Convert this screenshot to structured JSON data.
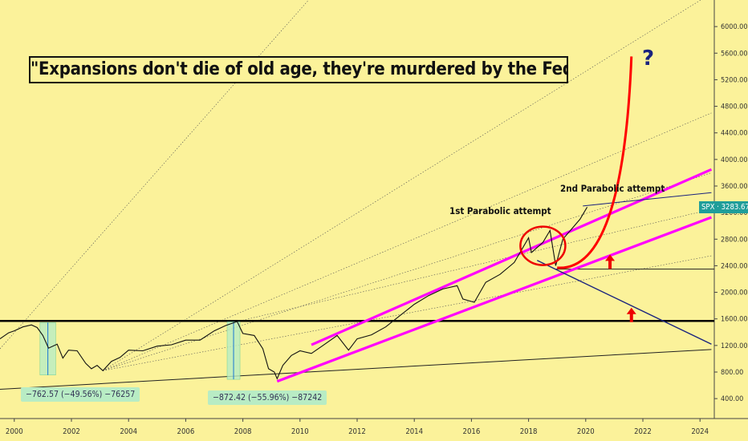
{
  "chart_data": {
    "type": "line",
    "symbol": "SPX",
    "last_price": "3283.67",
    "title": "\"Expansions don't die of old age, they're murdered by the Fed\"",
    "x_ticks": [
      "2000",
      "2002",
      "2004",
      "2006",
      "2008",
      "2010",
      "2012",
      "2014",
      "2016",
      "2018",
      "2020",
      "2022",
      "2024"
    ],
    "y_ticks": [
      "400.00",
      "800.00",
      "1200.00",
      "1600.00",
      "2000.00",
      "2400.00",
      "2800.00",
      "3200.00",
      "3600.00",
      "4000.00",
      "4400.00",
      "4800.00",
      "5200.00",
      "5600.00",
      "6000.00"
    ],
    "ylim": [
      100,
      6400
    ],
    "xlim": [
      1999.5,
      2024.5
    ],
    "series": [
      {
        "values": [
          [
            1999.5,
            1300
          ],
          [
            1999.8,
            1390
          ],
          [
            2000.0,
            1420
          ],
          [
            2000.3,
            1480
          ],
          [
            2000.6,
            1510
          ],
          [
            2000.8,
            1470
          ],
          [
            2001.0,
            1350
          ],
          [
            2001.2,
            1160
          ],
          [
            2001.5,
            1220
          ],
          [
            2001.7,
            1010
          ],
          [
            2001.9,
            1130
          ],
          [
            2002.2,
            1120
          ],
          [
            2002.5,
            930
          ],
          [
            2002.7,
            850
          ],
          [
            2002.9,
            900
          ],
          [
            2003.1,
            820
          ],
          [
            2003.4,
            960
          ],
          [
            2003.7,
            1020
          ],
          [
            2004.0,
            1130
          ],
          [
            2004.5,
            1120
          ],
          [
            2005.0,
            1190
          ],
          [
            2005.5,
            1210
          ],
          [
            2006.0,
            1280
          ],
          [
            2006.5,
            1280
          ],
          [
            2007.0,
            1420
          ],
          [
            2007.4,
            1500
          ],
          [
            2007.8,
            1560
          ],
          [
            2008.0,
            1380
          ],
          [
            2008.4,
            1350
          ],
          [
            2008.7,
            1150
          ],
          [
            2008.9,
            850
          ],
          [
            2009.1,
            800
          ],
          [
            2009.2,
            700
          ],
          [
            2009.4,
            900
          ],
          [
            2009.7,
            1050
          ],
          [
            2010.0,
            1120
          ],
          [
            2010.4,
            1080
          ],
          [
            2010.8,
            1200
          ],
          [
            2011.3,
            1350
          ],
          [
            2011.7,
            1130
          ],
          [
            2012.0,
            1300
          ],
          [
            2012.5,
            1360
          ],
          [
            2013.0,
            1480
          ],
          [
            2013.5,
            1650
          ],
          [
            2014.0,
            1820
          ],
          [
            2014.5,
            1950
          ],
          [
            2015.0,
            2050
          ],
          [
            2015.5,
            2100
          ],
          [
            2015.7,
            1900
          ],
          [
            2016.1,
            1850
          ],
          [
            2016.5,
            2150
          ],
          [
            2017.0,
            2270
          ],
          [
            2017.5,
            2450
          ],
          [
            2018.0,
            2820
          ],
          [
            2018.1,
            2600
          ],
          [
            2018.5,
            2750
          ],
          [
            2018.75,
            2930
          ],
          [
            2018.95,
            2400
          ],
          [
            2019.2,
            2800
          ],
          [
            2019.5,
            2950
          ],
          [
            2019.8,
            3100
          ],
          [
            2020.05,
            3283
          ]
        ]
      }
    ],
    "annotations": [
      "1st Parabolic attempt",
      "2nd Parabolic attempt",
      "?"
    ],
    "drawdowns": [
      "−762.57 (−49.56%) −76257",
      "−872.42 (−55.96%) −87242"
    ],
    "colors": {
      "background": "#fbf29a",
      "price": "#111111",
      "channel": "#ff00ff",
      "curve": "#ff0000",
      "horizontal": "#000000",
      "trend": "#1a237e",
      "drawdown_fill": "#b8ecc4",
      "price_tag": "#1f9e9a"
    }
  }
}
